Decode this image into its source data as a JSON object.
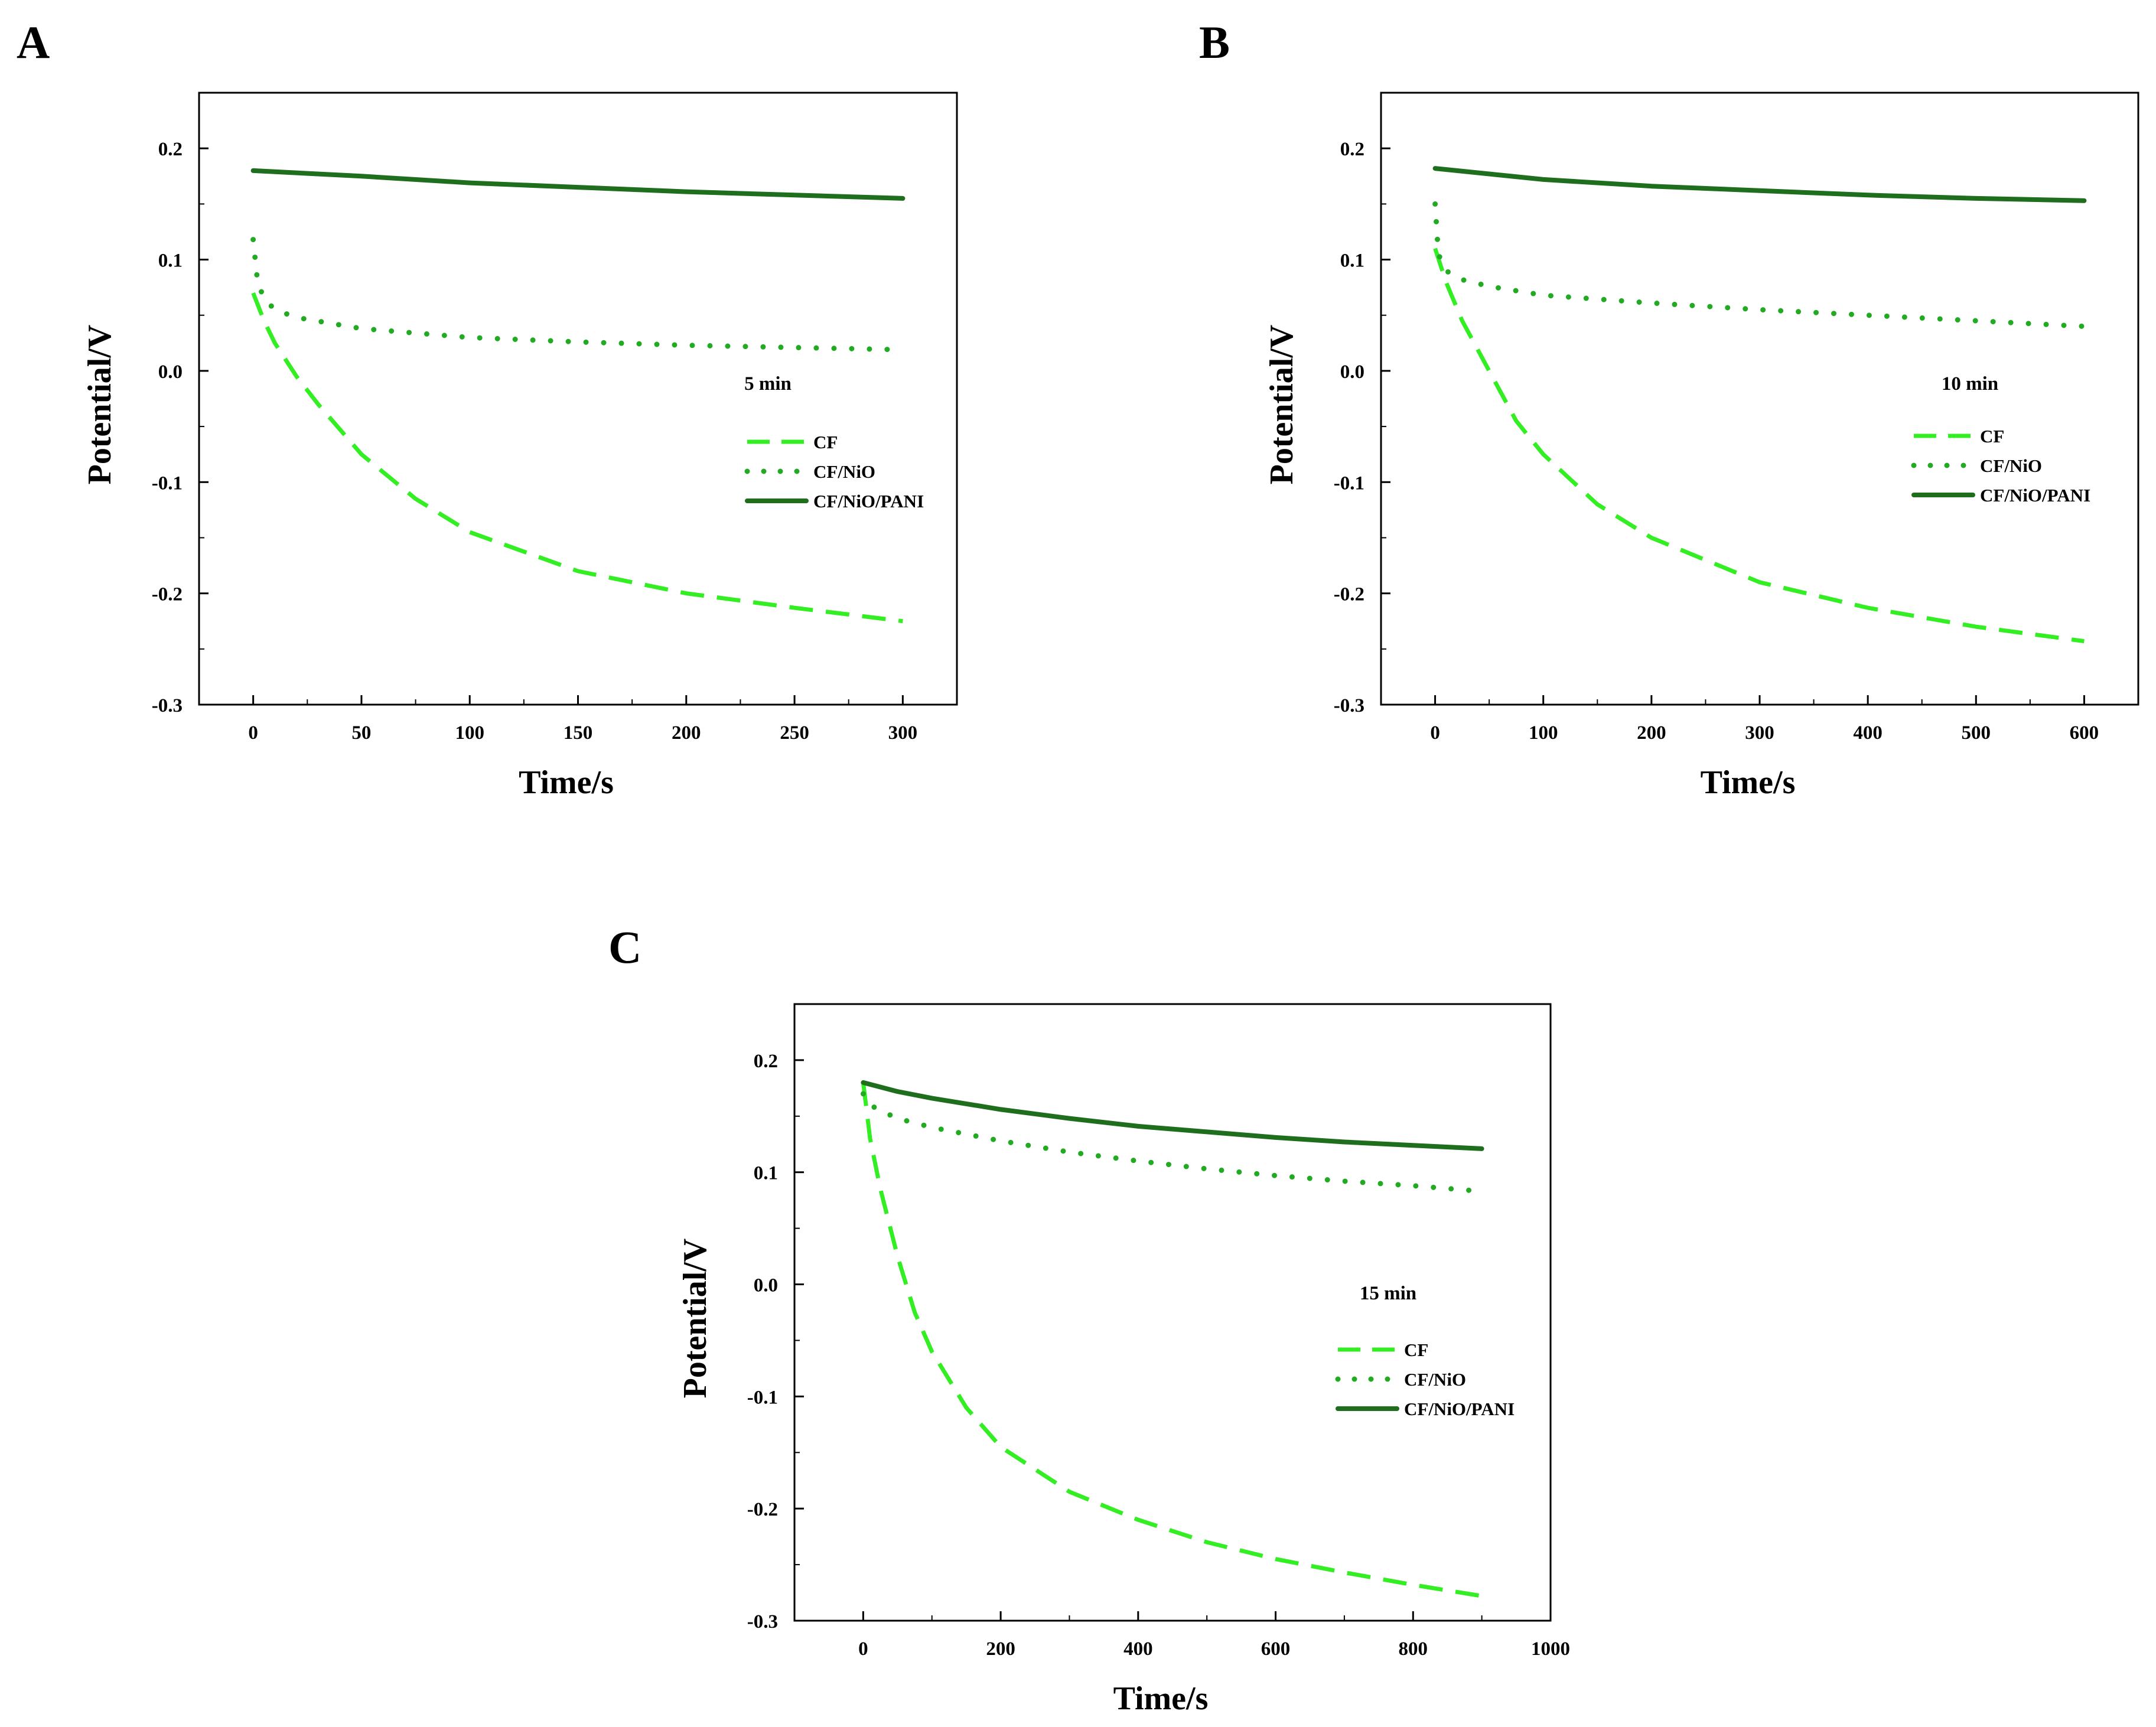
{
  "chart_data": [
    {
      "panel": "A",
      "type": "line",
      "title": "",
      "annotation": "5 min",
      "xlabel": "Time/s",
      "ylabel": "Potential/V",
      "xlim": [
        -25,
        325
      ],
      "ylim": [
        -0.3,
        0.25
      ],
      "xticks": [
        0,
        50,
        100,
        150,
        200,
        250,
        300
      ],
      "xtick_labels": [
        "0",
        "50",
        "100",
        "150",
        "200",
        "250",
        "300"
      ],
      "yticks": [
        -0.3,
        -0.2,
        -0.1,
        0.0,
        0.1,
        0.2
      ],
      "ytick_labels": [
        "-0.3",
        "-0.2",
        "-0.1",
        "0.0",
        "0.1",
        "0.2"
      ],
      "series": [
        {
          "name": "CF",
          "style": "dashed",
          "color": "#33ee22",
          "x": [
            0,
            5,
            10,
            20,
            30,
            50,
            75,
            100,
            150,
            200,
            250,
            300
          ],
          "y": [
            0.07,
            0.045,
            0.025,
            -0.005,
            -0.03,
            -0.075,
            -0.115,
            -0.145,
            -0.18,
            -0.2,
            -0.213,
            -0.225
          ]
        },
        {
          "name": "CF/NiO",
          "style": "dotted",
          "color": "#22aa22",
          "x": [
            0,
            2,
            5,
            10,
            20,
            50,
            100,
            150,
            200,
            250,
            300
          ],
          "y": [
            0.118,
            0.08,
            0.065,
            0.055,
            0.048,
            0.038,
            0.03,
            0.026,
            0.023,
            0.021,
            0.019
          ]
        },
        {
          "name": "CF/NiO/PANI",
          "style": "solid",
          "color": "#1e6e1e",
          "x": [
            0,
            50,
            100,
            150,
            200,
            250,
            300
          ],
          "y": [
            0.18,
            0.175,
            0.169,
            0.165,
            0.161,
            0.158,
            0.155
          ]
        }
      ]
    },
    {
      "panel": "B",
      "type": "line",
      "title": "",
      "annotation": "10 min",
      "xlabel": "Time/s",
      "ylabel": "Potential/V",
      "xlim": [
        -50,
        650
      ],
      "ylim": [
        -0.3,
        0.25
      ],
      "xticks": [
        0,
        100,
        200,
        300,
        400,
        500,
        600
      ],
      "xtick_labels": [
        "0",
        "100",
        "200",
        "300",
        "400",
        "500",
        "600"
      ],
      "yticks": [
        -0.3,
        -0.2,
        -0.1,
        0.0,
        0.1,
        0.2
      ],
      "ytick_labels": [
        "-0.3",
        "-0.2",
        "-0.1",
        "0.0",
        "0.1",
        "0.2"
      ],
      "series": [
        {
          "name": "CF",
          "style": "dashed",
          "color": "#33ee22",
          "x": [
            0,
            10,
            25,
            50,
            75,
            100,
            150,
            200,
            300,
            400,
            500,
            600
          ],
          "y": [
            0.11,
            0.08,
            0.045,
            0.0,
            -0.045,
            -0.075,
            -0.12,
            -0.15,
            -0.19,
            -0.213,
            -0.23,
            -0.243
          ]
        },
        {
          "name": "CF/NiO",
          "style": "dotted",
          "color": "#22aa22",
          "x": [
            0,
            3,
            10,
            25,
            50,
            100,
            200,
            300,
            400,
            500,
            600
          ],
          "y": [
            0.15,
            0.105,
            0.09,
            0.082,
            0.076,
            0.068,
            0.061,
            0.055,
            0.05,
            0.045,
            0.04
          ]
        },
        {
          "name": "CF/NiO/PANI",
          "style": "solid",
          "color": "#1e6e1e",
          "x": [
            0,
            50,
            100,
            200,
            300,
            400,
            500,
            600
          ],
          "y": [
            0.182,
            0.177,
            0.172,
            0.166,
            0.162,
            0.158,
            0.155,
            0.153
          ]
        }
      ]
    },
    {
      "panel": "C",
      "type": "line",
      "title": "",
      "annotation": "15 min",
      "xlabel": "Time/s",
      "ylabel": "Potential/V",
      "xlim": [
        -100,
        1000
      ],
      "ylim": [
        -0.3,
        0.25
      ],
      "xticks": [
        0,
        200,
        400,
        600,
        800,
        1000
      ],
      "xtick_labels": [
        "0",
        "200",
        "400",
        "600",
        "800",
        "1000"
      ],
      "yticks": [
        -0.3,
        -0.2,
        -0.1,
        0.0,
        0.1,
        0.2
      ],
      "ytick_labels": [
        "-0.3",
        "-0.2",
        "-0.1",
        "0.0",
        "0.1",
        "0.2"
      ],
      "series": [
        {
          "name": "CF",
          "style": "dashed",
          "color": "#33ee22",
          "x": [
            0,
            10,
            25,
            50,
            75,
            100,
            150,
            200,
            300,
            400,
            500,
            600,
            700,
            800,
            900
          ],
          "y": [
            0.18,
            0.13,
            0.085,
            0.025,
            -0.025,
            -0.06,
            -0.11,
            -0.145,
            -0.185,
            -0.21,
            -0.23,
            -0.245,
            -0.257,
            -0.268,
            -0.278
          ]
        },
        {
          "name": "CF/NiO",
          "style": "dotted",
          "color": "#22aa22",
          "x": [
            0,
            10,
            25,
            50,
            100,
            200,
            300,
            400,
            500,
            600,
            700,
            800,
            900
          ],
          "y": [
            0.17,
            0.16,
            0.155,
            0.148,
            0.14,
            0.128,
            0.118,
            0.11,
            0.103,
            0.097,
            0.092,
            0.088,
            0.083
          ]
        },
        {
          "name": "CF/NiO/PANI",
          "style": "solid",
          "color": "#1e6e1e",
          "x": [
            0,
            25,
            50,
            100,
            200,
            300,
            400,
            500,
            600,
            700,
            800,
            900
          ],
          "y": [
            0.18,
            0.176,
            0.172,
            0.166,
            0.156,
            0.148,
            0.141,
            0.136,
            0.131,
            0.127,
            0.124,
            0.121
          ]
        }
      ]
    }
  ]
}
